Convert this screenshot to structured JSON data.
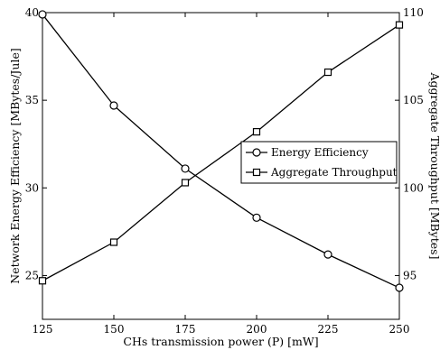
{
  "chart_data": {
    "type": "line",
    "title": "",
    "x": [
      125,
      150,
      175,
      200,
      225,
      250
    ],
    "xlabel": "CHs transmission power (P) [mW]",
    "xlim": [
      125,
      250
    ],
    "xticks": [
      "125",
      "150",
      "175",
      "200",
      "225",
      "250"
    ],
    "ylabel_left": "Network Energy Efficiency [MBytes/Jule]",
    "ylim_left": [
      22.5,
      40
    ],
    "yticks_left": [
      "25",
      "30",
      "35",
      "40"
    ],
    "ylabel_right": "Aggregate Throughput [MBytes]",
    "ylim_right": [
      92.5,
      110
    ],
    "yticks_right": [
      "95",
      "100",
      "105",
      "110"
    ],
    "grid": false,
    "legend_position": "center-right",
    "series": [
      {
        "name": "Energy Efficiency",
        "axis": "left",
        "marker": "circle",
        "color": "#000000",
        "values": [
          39.9,
          34.7,
          31.1,
          28.3,
          26.2,
          24.3
        ]
      },
      {
        "name": "Aggregate Throughput",
        "axis": "right",
        "marker": "square",
        "color": "#000000",
        "values": [
          94.7,
          96.9,
          100.3,
          103.2,
          106.6,
          109.3
        ]
      }
    ]
  }
}
